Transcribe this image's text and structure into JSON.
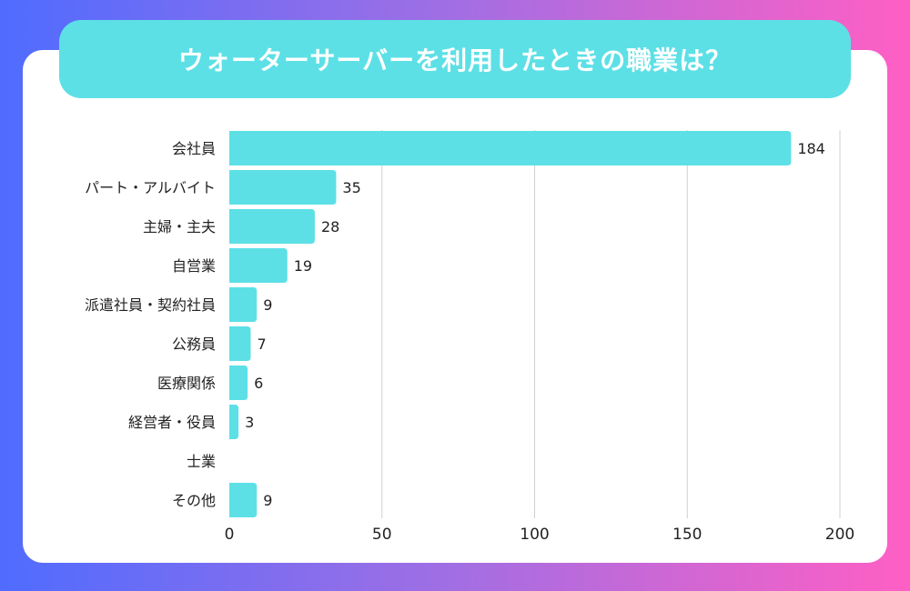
{
  "title": "ウォーターサーバーを利用したときの職業は？",
  "colors": {
    "bar": "#5ce0e6",
    "banner": "#5ce0e6",
    "grid": "#d0d0d0",
    "text": "#222222"
  },
  "chart_data": {
    "type": "bar",
    "orientation": "horizontal",
    "title": "ウォーターサーバーを利用したときの職業は？",
    "categories": [
      "会社員",
      "パート・アルバイト",
      "主婦・主夫",
      "自営業",
      "派遣社員・契約社員",
      "公務員",
      "医療関係",
      "経営者・役員",
      "士業",
      "その他"
    ],
    "values": [
      184,
      35,
      28,
      19,
      9,
      7,
      6,
      3,
      0,
      9
    ],
    "value_labels": [
      "184",
      "35",
      "28",
      "19",
      "9",
      "7",
      "6",
      "3",
      "",
      "9"
    ],
    "xlim": [
      0,
      200
    ],
    "xticks": [
      0,
      50,
      100,
      150,
      200
    ],
    "xtick_labels": [
      "0",
      "50",
      "100",
      "150",
      "200"
    ],
    "grid": true
  }
}
